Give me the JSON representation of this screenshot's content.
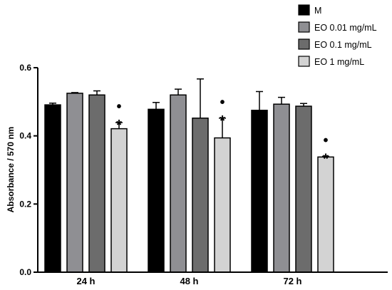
{
  "chart_data": {
    "type": "bar",
    "ylabel": "Absorbance / 570 nm",
    "ylim": [
      0,
      0.6
    ],
    "yticks": [
      "0.0",
      "0.2",
      "0.4",
      "0.6"
    ],
    "categories": [
      "24 h",
      "48 h",
      "72 h"
    ],
    "legend_position": "top-right",
    "series": [
      {
        "name": "M",
        "color": "#000000",
        "values": [
          0.491,
          0.478,
          0.475
        ],
        "errors": [
          0.005,
          0.02,
          0.055
        ]
      },
      {
        "name": "EO 0.01 mg/mL",
        "color": "#8f8f93",
        "values": [
          0.525,
          0.52,
          0.493
        ],
        "errors": [
          0.002,
          0.017,
          0.02
        ]
      },
      {
        "name": "EO 0.1 mg/mL",
        "color": "#6c6c6c",
        "values": [
          0.52,
          0.452,
          0.487
        ],
        "errors": [
          0.012,
          0.115,
          0.008
        ]
      },
      {
        "name": "EO 1 mg/mL",
        "color": "#d3d3d3",
        "values": [
          0.421,
          0.394,
          0.338
        ],
        "errors": [
          0.018,
          0.058,
          0.002
        ]
      }
    ],
    "annotations": [
      {
        "category_index": 0,
        "series_index": 3,
        "marks": [
          "•",
          "*"
        ]
      },
      {
        "category_index": 1,
        "series_index": 3,
        "marks": [
          "•",
          "*"
        ]
      },
      {
        "category_index": 2,
        "series_index": 3,
        "marks": [
          "•",
          "*"
        ]
      }
    ]
  }
}
